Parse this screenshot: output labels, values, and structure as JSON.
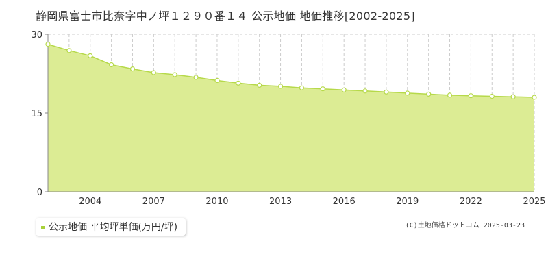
{
  "chart_data": {
    "type": "area",
    "title": "静岡県富士市比奈字中ノ坪１２９０番１４ 公示地価 地価推移[2002-2025]",
    "xlabel": "",
    "ylabel": "",
    "x": [
      2002,
      2003,
      2004,
      2005,
      2006,
      2007,
      2008,
      2009,
      2010,
      2011,
      2012,
      2013,
      2014,
      2015,
      2016,
      2017,
      2018,
      2019,
      2020,
      2021,
      2022,
      2023,
      2024,
      2025
    ],
    "series": [
      {
        "name": "公示地価 平均坪単価(万円/坪)",
        "values": [
          28.1,
          26.9,
          25.9,
          24.2,
          23.4,
          22.7,
          22.3,
          21.8,
          21.2,
          20.7,
          20.3,
          20.1,
          19.8,
          19.6,
          19.4,
          19.2,
          19.0,
          18.8,
          18.6,
          18.4,
          18.3,
          18.2,
          18.1,
          18.0
        ]
      }
    ],
    "xlim": [
      2002,
      2025
    ],
    "ylim": [
      0,
      30
    ],
    "y_ticks": [
      0,
      15,
      30
    ],
    "x_ticks": [
      2004,
      2007,
      2010,
      2013,
      2016,
      2019,
      2022,
      2025
    ],
    "grid": true,
    "legend_position": "bottom-left",
    "colors": {
      "fill": "#dcec94",
      "line": "#b6d94a",
      "marker_fill": "#ffffff",
      "grid": "#cccccc",
      "legend_swatch": "#a8d13a"
    }
  },
  "copyright": "(C)土地価格ドットコム 2025-03-23"
}
